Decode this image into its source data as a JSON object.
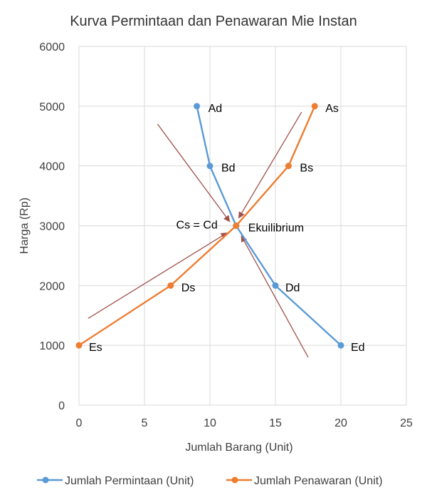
{
  "chart_data": {
    "type": "line",
    "title": "Kurva Permintaan dan Penawaran Mie Instan",
    "xlabel": "Jumlah Barang (Unit)",
    "ylabel": "Harga (Rp)",
    "xlim": [
      0,
      25
    ],
    "ylim": [
      0,
      6000
    ],
    "x_ticks": [
      "0",
      "5",
      "10",
      "15",
      "20",
      "25"
    ],
    "y_ticks": [
      "0",
      "1000",
      "2000",
      "3000",
      "4000",
      "5000",
      "6000"
    ],
    "grid": "vertical and horizontal",
    "legend_position": "bottom",
    "series": [
      {
        "name": "Jumlah Permintaan (Unit)",
        "color": "#5B9BD5",
        "points": [
          {
            "x": 9,
            "y": 5000,
            "label": "Ad"
          },
          {
            "x": 10,
            "y": 4000,
            "label": "Bd"
          },
          {
            "x": 12,
            "y": 3000,
            "label": ""
          },
          {
            "x": 15,
            "y": 2000,
            "label": "Dd"
          },
          {
            "x": 20,
            "y": 1000,
            "label": "Ed"
          }
        ]
      },
      {
        "name": "Jumlah Penawaran (Unit)",
        "color": "#ED7D31",
        "points": [
          {
            "x": 0,
            "y": 1000,
            "label": "Es"
          },
          {
            "x": 7,
            "y": 2000,
            "label": "Ds"
          },
          {
            "x": 12,
            "y": 3000,
            "label": "Cs = Cd"
          },
          {
            "x": 16,
            "y": 4000,
            "label": "Bs"
          },
          {
            "x": 18,
            "y": 5000,
            "label": "As"
          }
        ]
      }
    ],
    "annotations": [
      {
        "text": "Ekuilibrium",
        "x": 12,
        "y": 3000
      }
    ],
    "arrows": {
      "color": "#A0504A",
      "lines": [
        {
          "from": [
            6,
            4700
          ],
          "to": [
            11.5,
            3070
          ]
        },
        {
          "from": [
            17,
            4900
          ],
          "to": [
            12.2,
            3130
          ]
        },
        {
          "from": [
            0.7,
            1450
          ],
          "to": [
            11.3,
            2880
          ]
        },
        {
          "from": [
            17.5,
            800
          ],
          "to": [
            12.4,
            2830
          ]
        }
      ]
    }
  }
}
